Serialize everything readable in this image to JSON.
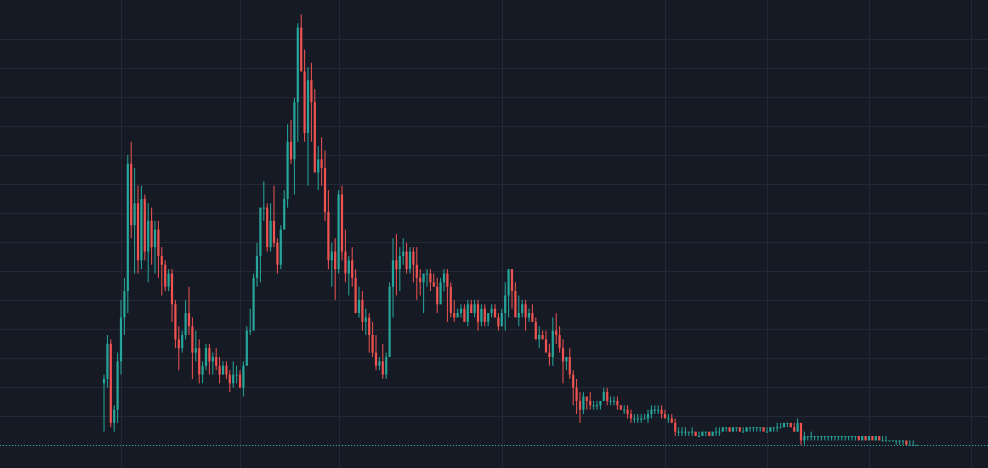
{
  "theme": {
    "background": "#161a25",
    "grid": "#242836",
    "up": "#26a69a",
    "down": "#ef5350",
    "last_price_line": "#26a69a"
  },
  "chart_data": {
    "type": "candlestick",
    "title": "",
    "xlabel": "",
    "ylabel": "",
    "grid": true,
    "legend": "none",
    "ylim": [
      -2,
      100
    ],
    "last_price": 1,
    "vertical_grid_at_index": [
      5,
      40,
      69,
      117,
      165,
      195,
      225,
      255
    ],
    "horizontal_grid_values": [
      1,
      7.59,
      14.19,
      20.78,
      27.37,
      33.96,
      40.56,
      47.15,
      53.74,
      60.33,
      66.93,
      73.52,
      80.11,
      86.7,
      93.3
    ],
    "ohlc": [
      [
        15,
        17,
        4,
        16
      ],
      [
        16,
        26,
        14,
        24
      ],
      [
        24,
        25,
        5,
        6
      ],
      [
        6,
        10,
        4,
        9
      ],
      [
        9,
        22,
        6,
        20
      ],
      [
        20,
        34,
        17,
        30
      ],
      [
        30,
        39,
        26,
        36
      ],
      [
        36,
        67,
        31,
        65
      ],
      [
        65,
        70,
        48,
        51
      ],
      [
        51,
        64,
        40,
        56
      ],
      [
        56,
        60,
        40,
        43
      ],
      [
        43,
        60,
        41,
        57
      ],
      [
        57,
        58,
        43,
        45
      ],
      [
        45,
        56,
        38,
        52
      ],
      [
        52,
        55,
        42,
        46
      ],
      [
        46,
        52,
        40,
        50
      ],
      [
        50,
        52,
        39,
        44
      ],
      [
        44,
        46,
        35,
        42
      ],
      [
        42,
        43,
        36,
        37
      ],
      [
        37,
        41,
        36,
        40
      ],
      [
        40,
        41,
        29,
        33
      ],
      [
        33,
        34,
        23,
        25
      ],
      [
        25,
        28,
        18,
        23
      ],
      [
        23,
        27,
        22,
        26
      ],
      [
        26,
        34,
        25,
        31
      ],
      [
        31,
        37,
        26,
        28
      ],
      [
        28,
        30,
        16,
        22
      ],
      [
        22,
        27,
        20,
        23
      ],
      [
        23,
        25,
        15,
        17
      ],
      [
        17,
        20,
        15,
        19
      ],
      [
        19,
        24,
        18,
        23
      ],
      [
        23,
        24,
        17,
        20
      ],
      [
        20,
        22,
        17,
        21
      ],
      [
        21,
        23,
        18,
        19
      ],
      [
        19,
        21,
        15,
        17
      ],
      [
        17,
        20,
        17,
        19
      ],
      [
        19,
        20,
        16,
        17
      ],
      [
        17,
        18,
        13,
        15
      ],
      [
        15,
        20,
        14,
        17
      ],
      [
        17,
        19,
        15,
        17
      ],
      [
        17,
        18,
        14,
        14
      ],
      [
        14,
        20,
        12,
        19
      ],
      [
        19,
        28,
        19,
        27
      ],
      [
        27,
        32,
        26,
        27
      ],
      [
        27,
        40,
        27,
        39
      ],
      [
        39,
        47,
        37,
        44
      ],
      [
        44,
        55,
        38,
        55
      ],
      [
        55,
        61,
        52,
        55
      ],
      [
        55,
        56,
        45,
        46
      ],
      [
        46,
        56,
        45,
        52
      ],
      [
        52,
        60,
        46,
        47
      ],
      [
        47,
        48,
        40,
        42
      ],
      [
        42,
        51,
        41,
        50
      ],
      [
        50,
        59,
        50,
        57
      ],
      [
        57,
        74,
        55,
        70
      ],
      [
        70,
        75,
        65,
        66
      ],
      [
        66,
        80,
        58,
        79
      ],
      [
        79,
        97,
        70,
        96
      ],
      [
        96,
        99,
        86,
        86
      ],
      [
        86,
        91,
        70,
        72
      ],
      [
        72,
        87,
        60,
        84
      ],
      [
        84,
        88,
        70,
        79
      ],
      [
        79,
        82,
        63,
        63
      ],
      [
        63,
        69,
        59,
        66
      ],
      [
        66,
        71,
        60,
        64
      ],
      [
        64,
        68,
        52,
        54
      ],
      [
        54,
        59,
        41,
        43
      ],
      [
        43,
        47,
        37,
        45
      ],
      [
        45,
        48,
        34,
        41
      ],
      [
        41,
        59,
        40,
        58
      ],
      [
        58,
        60,
        43,
        45
      ],
      [
        45,
        50,
        38,
        40
      ],
      [
        40,
        44,
        35,
        43
      ],
      [
        43,
        46,
        37,
        39
      ],
      [
        39,
        41,
        31,
        31
      ],
      [
        31,
        37,
        30,
        34
      ],
      [
        34,
        36,
        27,
        29
      ],
      [
        29,
        32,
        26,
        30
      ],
      [
        30,
        31,
        22,
        26
      ],
      [
        26,
        29,
        21,
        22
      ],
      [
        22,
        26,
        18,
        19
      ],
      [
        19,
        21,
        18,
        20
      ],
      [
        20,
        24,
        16,
        17
      ],
      [
        17,
        22,
        16,
        21
      ],
      [
        21,
        38,
        21,
        37
      ],
      [
        37,
        48,
        30,
        43
      ],
      [
        43,
        49,
        35,
        41
      ],
      [
        41,
        46,
        36,
        44
      ],
      [
        44,
        48,
        42,
        45
      ],
      [
        45,
        47,
        40,
        41
      ],
      [
        41,
        46,
        40,
        45
      ],
      [
        45,
        46,
        38,
        42
      ],
      [
        42,
        46,
        34,
        39
      ],
      [
        39,
        41,
        35,
        38
      ],
      [
        38,
        40,
        31,
        40
      ],
      [
        40,
        41,
        37,
        40
      ],
      [
        40,
        41,
        36,
        38
      ],
      [
        38,
        40,
        37,
        37
      ],
      [
        37,
        39,
        31,
        33
      ],
      [
        33,
        39,
        33,
        38
      ],
      [
        38,
        41,
        36,
        40
      ],
      [
        40,
        41,
        29,
        37
      ],
      [
        37,
        38,
        30,
        31
      ],
      [
        31,
        34,
        29,
        30
      ],
      [
        30,
        32,
        30,
        31
      ],
      [
        31,
        33,
        30,
        32
      ],
      [
        32,
        33,
        29,
        29
      ],
      [
        29,
        34,
        28,
        33
      ],
      [
        33,
        34,
        31,
        31
      ],
      [
        31,
        34,
        30,
        33
      ],
      [
        33,
        34,
        27,
        29
      ],
      [
        29,
        33,
        28,
        32
      ],
      [
        32,
        33,
        28,
        29
      ],
      [
        29,
        31,
        28,
        31
      ],
      [
        31,
        33,
        30,
        32
      ],
      [
        32,
        33,
        30,
        30
      ],
      [
        30,
        31,
        27,
        28
      ],
      [
        28,
        32,
        28,
        31
      ],
      [
        31,
        38,
        27,
        35
      ],
      [
        35,
        41,
        30,
        41
      ],
      [
        41,
        41,
        32,
        36
      ],
      [
        36,
        38,
        30,
        30
      ],
      [
        30,
        35,
        28,
        31
      ],
      [
        31,
        34,
        30,
        33
      ],
      [
        33,
        34,
        27,
        30
      ],
      [
        30,
        32,
        29,
        31
      ],
      [
        31,
        33,
        29,
        29
      ],
      [
        29,
        30,
        25,
        25
      ],
      [
        25,
        28,
        23,
        26
      ],
      [
        26,
        27,
        25,
        25
      ],
      [
        25,
        27,
        22,
        22
      ],
      [
        22,
        24,
        19,
        21
      ],
      [
        21,
        30,
        19,
        27
      ],
      [
        27,
        31,
        24,
        26
      ],
      [
        26,
        28,
        22,
        23
      ],
      [
        23,
        25,
        15,
        20
      ],
      [
        20,
        21,
        18,
        21
      ],
      [
        21,
        23,
        16,
        17
      ],
      [
        17,
        18,
        10,
        14
      ],
      [
        14,
        16,
        8,
        11
      ],
      [
        11,
        13,
        6,
        9
      ],
      [
        9,
        13,
        8,
        12
      ],
      [
        12,
        12,
        9,
        11
      ],
      [
        11,
        13,
        9,
        10
      ],
      [
        10,
        11,
        9,
        10
      ],
      [
        10,
        11,
        9,
        10
      ],
      [
        10,
        11,
        9,
        11
      ],
      [
        11,
        14,
        11,
        13
      ],
      [
        13,
        14,
        10,
        11
      ],
      [
        11,
        12,
        10,
        11
      ],
      [
        11,
        12,
        10,
        11
      ],
      [
        11,
        12,
        9,
        10
      ],
      [
        10,
        10,
        9,
        9
      ],
      [
        9,
        10,
        8,
        9
      ],
      [
        9,
        10,
        7,
        8
      ],
      [
        8,
        9,
        6,
        7
      ],
      [
        7,
        8,
        6,
        7
      ],
      [
        7,
        8,
        6,
        7
      ],
      [
        7,
        8,
        6,
        7
      ],
      [
        7,
        8,
        7,
        7
      ],
      [
        7,
        9,
        6,
        8
      ],
      [
        8,
        10,
        7,
        9
      ],
      [
        9,
        10,
        8,
        9
      ],
      [
        9,
        10,
        8,
        9
      ],
      [
        9,
        10,
        7,
        8
      ],
      [
        8,
        9,
        7,
        7
      ],
      [
        7,
        8,
        6,
        7
      ],
      [
        7,
        8,
        6,
        6
      ],
      [
        6,
        7,
        3,
        4
      ],
      [
        4,
        5,
        3,
        4
      ],
      [
        4,
        5,
        3,
        4
      ],
      [
        4,
        5,
        3,
        4
      ],
      [
        4,
        4,
        3,
        4
      ],
      [
        4,
        5,
        3,
        4
      ],
      [
        4,
        4,
        3,
        3
      ],
      [
        3,
        4,
        3,
        3
      ],
      [
        3,
        4,
        3,
        4
      ],
      [
        4,
        4,
        3,
        4
      ],
      [
        4,
        4,
        3,
        3
      ],
      [
        3,
        4,
        3,
        4
      ],
      [
        4,
        5,
        3,
        4
      ],
      [
        4,
        5,
        3,
        4
      ],
      [
        4,
        5,
        4,
        5
      ],
      [
        5,
        5,
        4,
        5
      ],
      [
        5,
        5,
        4,
        4
      ],
      [
        4,
        5,
        4,
        5
      ],
      [
        5,
        5,
        4,
        5
      ],
      [
        5,
        5,
        4,
        4
      ],
      [
        4,
        5,
        4,
        4
      ],
      [
        4,
        5,
        4,
        5
      ],
      [
        5,
        5,
        4,
        5
      ],
      [
        5,
        5,
        4,
        5
      ],
      [
        5,
        5,
        4,
        5
      ],
      [
        5,
        5,
        4,
        5
      ],
      [
        5,
        5,
        4,
        4
      ],
      [
        4,
        5,
        4,
        4
      ],
      [
        4,
        5,
        4,
        5
      ],
      [
        5,
        5,
        4,
        5
      ],
      [
        5,
        6,
        4,
        5
      ],
      [
        5,
        6,
        5,
        5
      ],
      [
        5,
        6,
        5,
        6
      ],
      [
        6,
        6,
        5,
        6
      ],
      [
        6,
        6,
        5,
        5
      ],
      [
        5,
        6,
        4,
        4
      ],
      [
        4,
        7,
        4,
        6
      ],
      [
        6,
        6,
        1,
        2
      ],
      [
        2,
        4,
        1,
        3
      ],
      [
        3,
        3,
        2,
        3
      ],
      [
        3,
        4,
        2,
        3
      ],
      [
        3,
        3,
        2,
        3
      ],
      [
        3,
        3,
        2,
        3
      ],
      [
        3,
        3,
        2,
        3
      ],
      [
        3,
        3,
        2,
        3
      ],
      [
        3,
        3,
        2,
        3
      ],
      [
        3,
        3,
        2,
        3
      ],
      [
        3,
        3,
        2,
        3
      ],
      [
        3,
        3,
        2,
        3
      ],
      [
        3,
        3,
        2,
        3
      ],
      [
        3,
        3,
        2,
        3
      ],
      [
        3,
        3,
        2,
        3
      ],
      [
        3,
        3,
        2,
        3
      ],
      [
        3,
        3,
        2,
        3
      ],
      [
        3,
        3,
        2,
        2
      ],
      [
        2,
        3,
        2,
        3
      ],
      [
        3,
        3,
        2,
        2
      ],
      [
        2,
        3,
        2,
        3
      ],
      [
        3,
        3,
        2,
        2
      ],
      [
        2,
        3,
        2,
        3
      ],
      [
        3,
        3,
        2,
        2
      ],
      [
        2,
        3,
        2,
        2
      ],
      [
        2,
        3,
        2,
        2
      ],
      [
        2,
        2,
        2,
        2
      ],
      [
        2,
        2,
        2,
        2
      ],
      [
        2,
        2,
        1,
        2
      ],
      [
        2,
        2,
        1,
        2
      ],
      [
        2,
        2,
        1,
        2
      ],
      [
        2,
        2,
        1,
        1
      ],
      [
        1,
        2,
        1,
        1
      ],
      [
        1,
        2,
        1,
        1
      ],
      [
        1,
        1,
        1,
        1
      ]
    ]
  }
}
